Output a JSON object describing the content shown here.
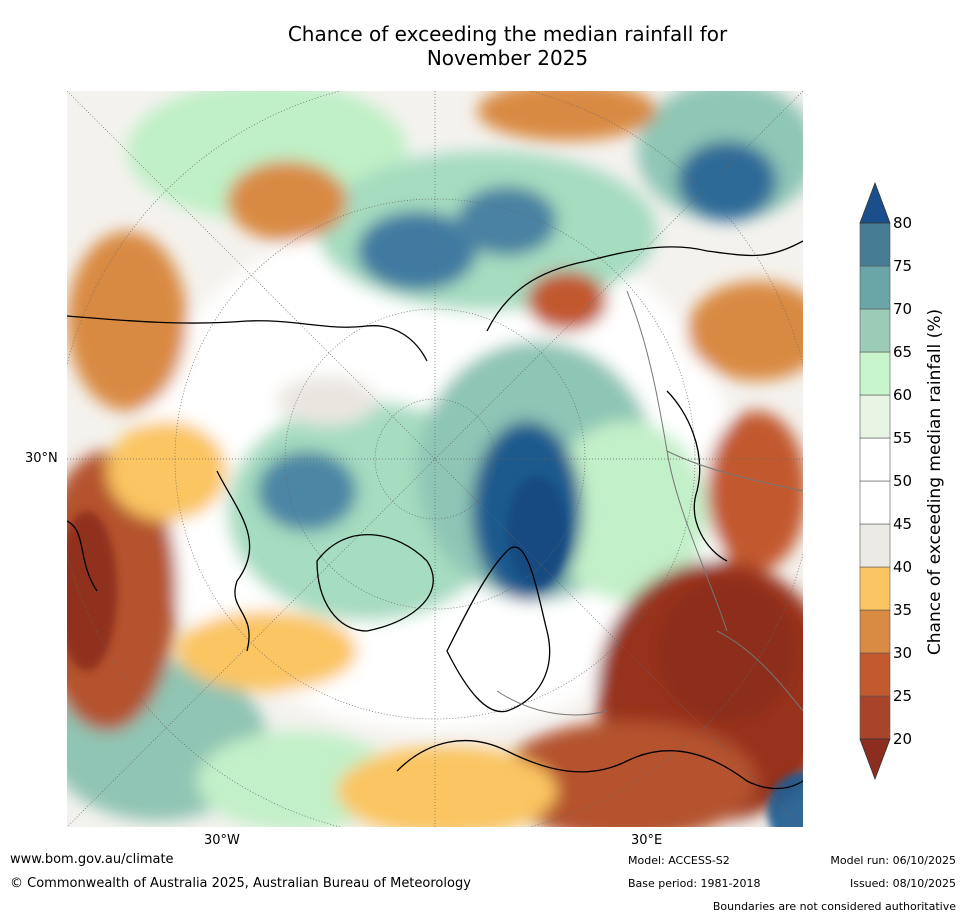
{
  "title": "Chance of exceeding the median rainfall for\nNovember 2025",
  "title_lines": [
    "Chance of exceeding the median rainfall for",
    "November 2025"
  ],
  "axis_labels": {
    "lat_30n": "30°N",
    "lon_30w": "30°W",
    "lon_30e": "30°E"
  },
  "colorbar": {
    "label": "Chance of exceeding median rainfall (%)",
    "ticks": [
      "20",
      "25",
      "30",
      "35",
      "40",
      "45",
      "50",
      "55",
      "60",
      "65",
      "70",
      "75",
      "80"
    ],
    "colors": [
      "#a8442a",
      "#c2592f",
      "#d98a43",
      "#fbc562",
      "#eceae5",
      "#ffffff",
      "#ffffff",
      "#e8f5e4",
      "#c9f5cc",
      "#9bccb8",
      "#6aa5a8",
      "#467c94",
      "#1f4f86"
    ],
    "extend_low_color": "#8c2d1f",
    "extend_high_color": "#1a4f8c"
  },
  "footer": {
    "website": "www.bom.gov.au/climate",
    "copyright": "© Commonwealth of Australia 2025, Australian Bureau of Meteorology",
    "model": "Model: ACCESS-S2",
    "base_period": "Base period: 1981-2018",
    "model_run": "Model run: 06/10/2025",
    "issued": "Issued: 08/10/2025",
    "disclaimer": "Boundaries are not considered authoritative"
  }
}
